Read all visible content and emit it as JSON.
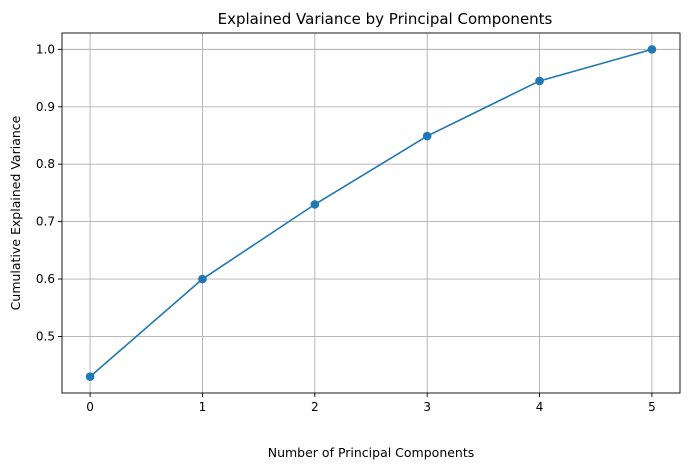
{
  "chart_data": {
    "type": "line",
    "title": "Explained Variance by Principal Components",
    "xlabel": "Number of Principal Components",
    "ylabel": "Cumulative Explained Variance",
    "x": [
      0,
      1,
      2,
      3,
      4,
      5
    ],
    "series": [
      {
        "values": [
          0.43,
          0.6,
          0.73,
          0.849,
          0.945,
          1.0
        ],
        "color": "#1f77b4",
        "marker": "circle"
      }
    ],
    "xlim": [
      -0.25,
      5.25
    ],
    "ylim": [
      0.4015,
      1.0285
    ],
    "xticks": [
      0,
      1,
      2,
      3,
      4,
      5
    ],
    "xtick_labels": [
      "0",
      "1",
      "2",
      "3",
      "4",
      "5"
    ],
    "yticks": [
      0.5,
      0.6,
      0.7,
      0.8,
      0.9,
      1.0
    ],
    "ytick_labels": [
      "0.5",
      "0.6",
      "0.7",
      "0.8",
      "0.9",
      "1.0"
    ],
    "grid": true,
    "grid_color": "#b0b0b0",
    "legend": "none"
  }
}
